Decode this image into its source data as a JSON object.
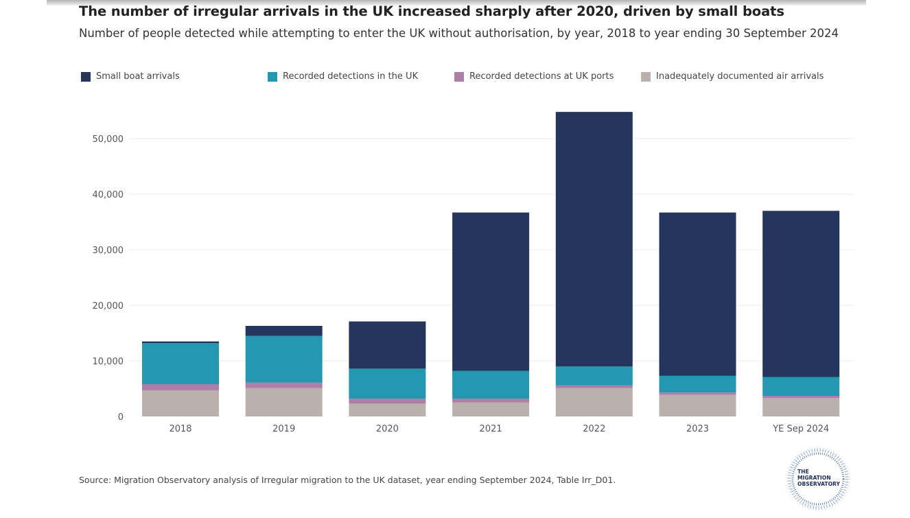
{
  "chart_data": {
    "type": "bar",
    "stacked": true,
    "title": "The number of irregular arrivals in the UK increased sharply after 2020, driven by small boats",
    "subtitle": "Number of people detected while attempting to enter the UK without authorisation, by year, 2018 to year ending 30 September 2024",
    "xlabel": "",
    "ylabel": "",
    "ylim": [
      0,
      55000
    ],
    "yticks": [
      0,
      10000,
      20000,
      30000,
      40000,
      50000
    ],
    "ytick_labels": [
      "0",
      "10,000",
      "20,000",
      "30,000",
      "40,000",
      "50,000"
    ],
    "categories": [
      "2018",
      "2019",
      "2020",
      "2021",
      "2022",
      "2023",
      "YE Sep 2024"
    ],
    "series": [
      {
        "name": "Inadequately documented air arrivals",
        "color": "#bab1ad",
        "values": [
          4700,
          5100,
          2300,
          2500,
          5100,
          3900,
          3300
        ]
      },
      {
        "name": "Recorded detections at UK ports",
        "color": "#ad7fa8",
        "values": [
          1100,
          1000,
          900,
          700,
          500,
          400,
          400
        ]
      },
      {
        "name": "Recorded detections in the UK",
        "color": "#2498b0",
        "values": [
          7400,
          8400,
          5400,
          5000,
          3400,
          3000,
          3400
        ]
      },
      {
        "name": "Small boat arrivals",
        "color": "#24355e",
        "values": [
          300,
          1800,
          8500,
          28500,
          45800,
          29400,
          29900
        ]
      }
    ],
    "legend_order": [
      "Small boat arrivals",
      "Recorded detections in the UK",
      "Recorded detections at UK ports",
      "Inadequately documented air arrivals"
    ],
    "grid": true,
    "legend_position": "top"
  },
  "source": "Source: Migration Observatory analysis of Irregular migration to the UK dataset, year ending September 2024, Table Irr_D01.",
  "logo": {
    "line1": "THE",
    "line2": "MIGRATION",
    "line3": "OBSERVATORY"
  }
}
